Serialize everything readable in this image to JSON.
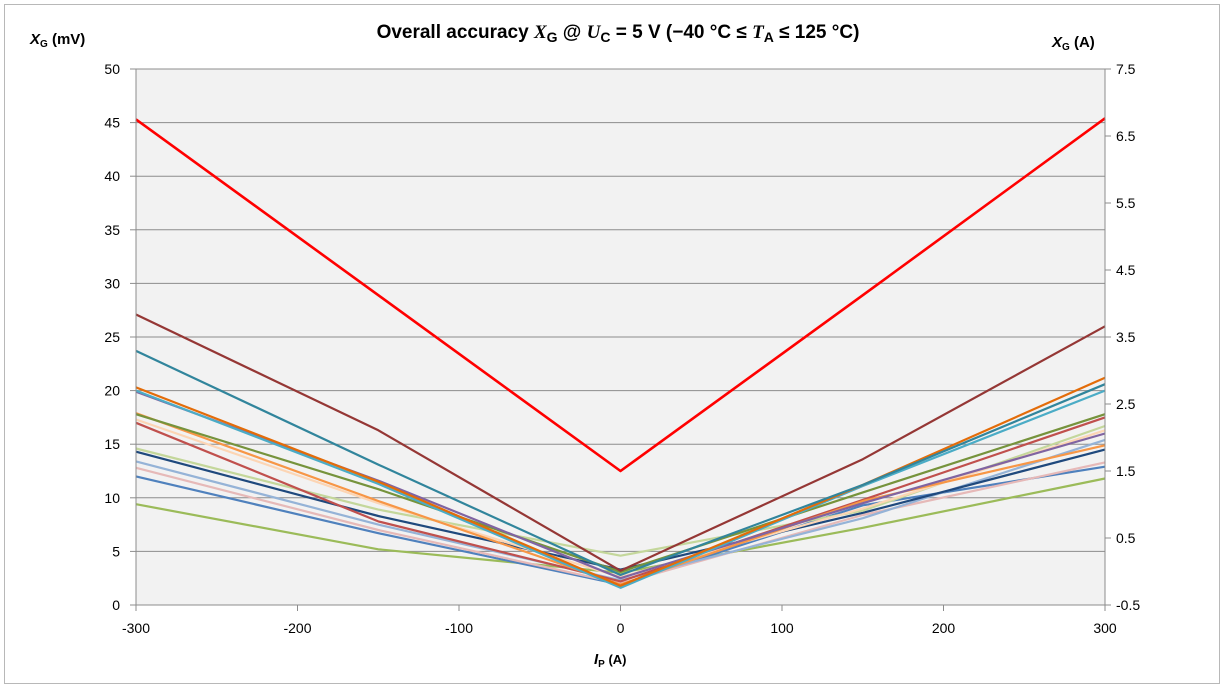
{
  "chart_data": {
    "type": "line",
    "title_parts": {
      "prefix": "Overall accuracy ",
      "xg": "X",
      "xg_sub": "G",
      "mid1": " @ ",
      "uc": "U",
      "uc_sub": "C",
      "mid2": " = 5 V (−40 °C ≤ ",
      "ta": "T",
      "ta_sub": "A",
      "suffix": " ≤ 125 °C)"
    },
    "ylabel_left": {
      "main": "X",
      "sub": "G",
      "unit": " (mV)"
    },
    "ylabel_right": {
      "main": "X",
      "sub": "G",
      "unit": " (A)"
    },
    "xlabel": {
      "main": "I",
      "sub": "P",
      "unit": " (A)"
    },
    "xlim": [
      -300,
      300
    ],
    "ylim": [
      0,
      50
    ],
    "y2lim": [
      -0.5,
      7.5
    ],
    "x_ticks": [
      "-300",
      "-200",
      "-100",
      "0",
      "100",
      "200",
      "300"
    ],
    "y_ticks": [
      "0",
      "5",
      "10",
      "15",
      "20",
      "25",
      "30",
      "35",
      "40",
      "45",
      "50"
    ],
    "y2_ticks": [
      "-0.5",
      "0.5",
      "1.5",
      "2.5",
      "3.5",
      "4.5",
      "5.5",
      "6.5",
      "7.5"
    ],
    "grid": true,
    "plot_background": "#f2f2f2",
    "x": [
      -300,
      -150,
      0,
      150,
      300
    ],
    "series": [
      {
        "color": "#9bbb59",
        "values": [
          9.4,
          5.2,
          3.0,
          7.2,
          11.8
        ]
      },
      {
        "color": "#4f81bd",
        "values": [
          12.0,
          6.7,
          1.9,
          9.3,
          12.9
        ]
      },
      {
        "color": "#e6b9b8",
        "values": [
          12.8,
          7.0,
          2.0,
          8.4,
          13.3
        ]
      },
      {
        "color": "#95b3d7",
        "values": [
          13.4,
          7.5,
          2.3,
          8.1,
          15.4
        ]
      },
      {
        "color": "#1f497d",
        "values": [
          14.3,
          8.3,
          3.3,
          8.6,
          14.5
        ]
      },
      {
        "color": "#c4d79b",
        "values": [
          14.6,
          8.9,
          4.6,
          8.8,
          16.7
        ]
      },
      {
        "color": "#c0504d",
        "values": [
          17.0,
          7.8,
          2.2,
          9.8,
          17.5
        ]
      },
      {
        "color": "#fcd5b4",
        "values": [
          17.3,
          9.5,
          2.6,
          9.0,
          16.3
        ]
      },
      {
        "color": "#f79646",
        "values": [
          17.9,
          9.7,
          1.9,
          9.7,
          14.9
        ]
      },
      {
        "color": "#76933c",
        "values": [
          17.8,
          10.8,
          3.1,
          10.5,
          17.8
        ]
      },
      {
        "color": "#8064a2",
        "values": [
          19.9,
          11.6,
          2.5,
          9.5,
          16.0
        ]
      },
      {
        "color": "#4bacc6",
        "values": [
          20.0,
          11.3,
          1.6,
          11.1,
          20.0
        ]
      },
      {
        "color": "#e36c09",
        "values": [
          20.3,
          11.5,
          1.8,
          11.2,
          21.2
        ]
      },
      {
        "color": "#31859c",
        "values": [
          23.7,
          13.1,
          2.8,
          11.2,
          20.6
        ]
      },
      {
        "color": "#953735",
        "values": [
          27.1,
          16.3,
          3.2,
          13.6,
          26.0
        ]
      },
      {
        "color": "#ff0000",
        "values": [
          45.3,
          28.9,
          12.5,
          28.9,
          45.4
        ]
      }
    ]
  }
}
